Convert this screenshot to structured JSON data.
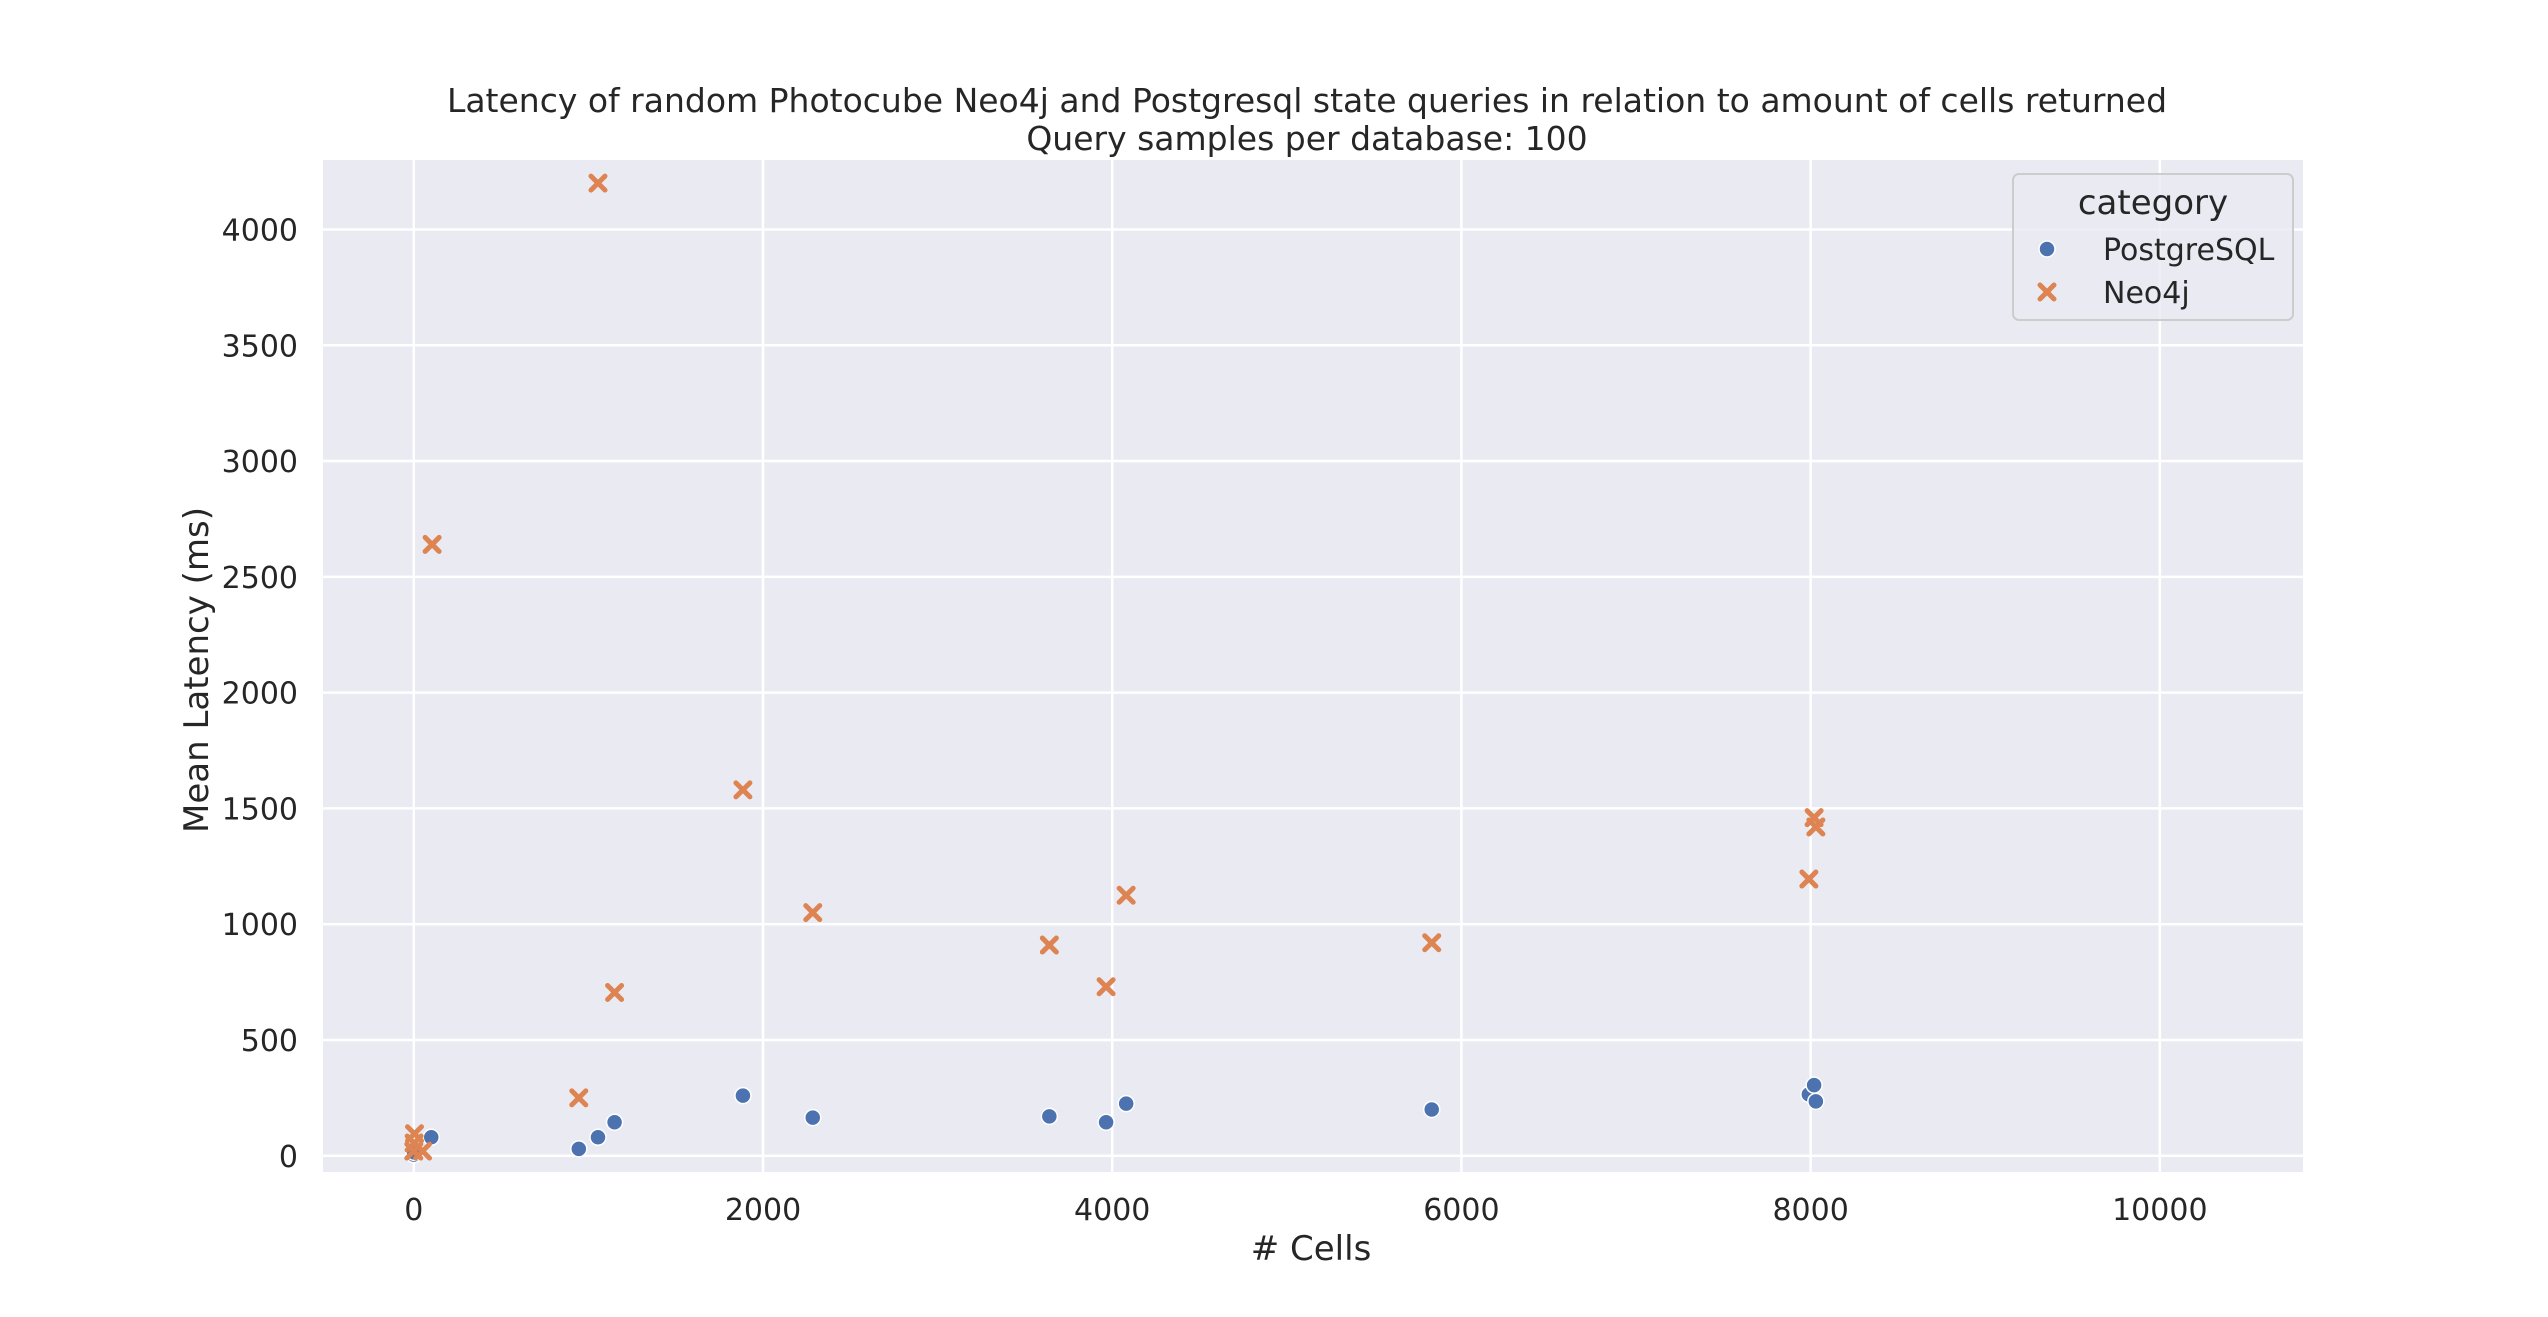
{
  "chart_data": {
    "type": "scatter",
    "title": "Latency of random Photocube Neo4j and Postgresql state queries in relation to amount of cells returned",
    "subtitle": "Query samples per database: 100",
    "xlabel": "# Cells",
    "ylabel": "Mean Latency (ms)",
    "xlim": [
      -520,
      10820
    ],
    "ylim": [
      -70,
      4300
    ],
    "xticks": [
      0,
      2000,
      4000,
      6000,
      8000,
      10000
    ],
    "yticks": [
      0,
      500,
      1000,
      1500,
      2000,
      2500,
      3000,
      3500,
      4000
    ],
    "grid": true,
    "legend": {
      "title": "category",
      "placement": "top-right"
    },
    "series": [
      {
        "name": "PostgreSQL",
        "marker": "circle",
        "color": "#4c72b0",
        "points": [
          [
            0,
            5
          ],
          [
            2,
            15
          ],
          [
            100,
            80
          ],
          [
            945,
            30
          ],
          [
            1055,
            80
          ],
          [
            1150,
            145
          ],
          [
            1885,
            260
          ],
          [
            2285,
            165
          ],
          [
            3640,
            170
          ],
          [
            3965,
            145
          ],
          [
            4080,
            225
          ],
          [
            5830,
            200
          ],
          [
            7990,
            265
          ],
          [
            8020,
            305
          ],
          [
            8030,
            235
          ]
        ]
      },
      {
        "name": "Neo4j",
        "marker": "x",
        "color": "#dd8452",
        "points": [
          [
            0,
            20
          ],
          [
            2,
            55
          ],
          [
            4,
            95
          ],
          [
            50,
            20
          ],
          [
            105,
            2640
          ],
          [
            945,
            250
          ],
          [
            1055,
            4200
          ],
          [
            1150,
            705
          ],
          [
            1885,
            1580
          ],
          [
            2285,
            1050
          ],
          [
            3640,
            910
          ],
          [
            3965,
            730
          ],
          [
            4080,
            1125
          ],
          [
            5830,
            920
          ],
          [
            7990,
            1195
          ],
          [
            8020,
            1460
          ],
          [
            8030,
            1420
          ]
        ]
      }
    ]
  }
}
